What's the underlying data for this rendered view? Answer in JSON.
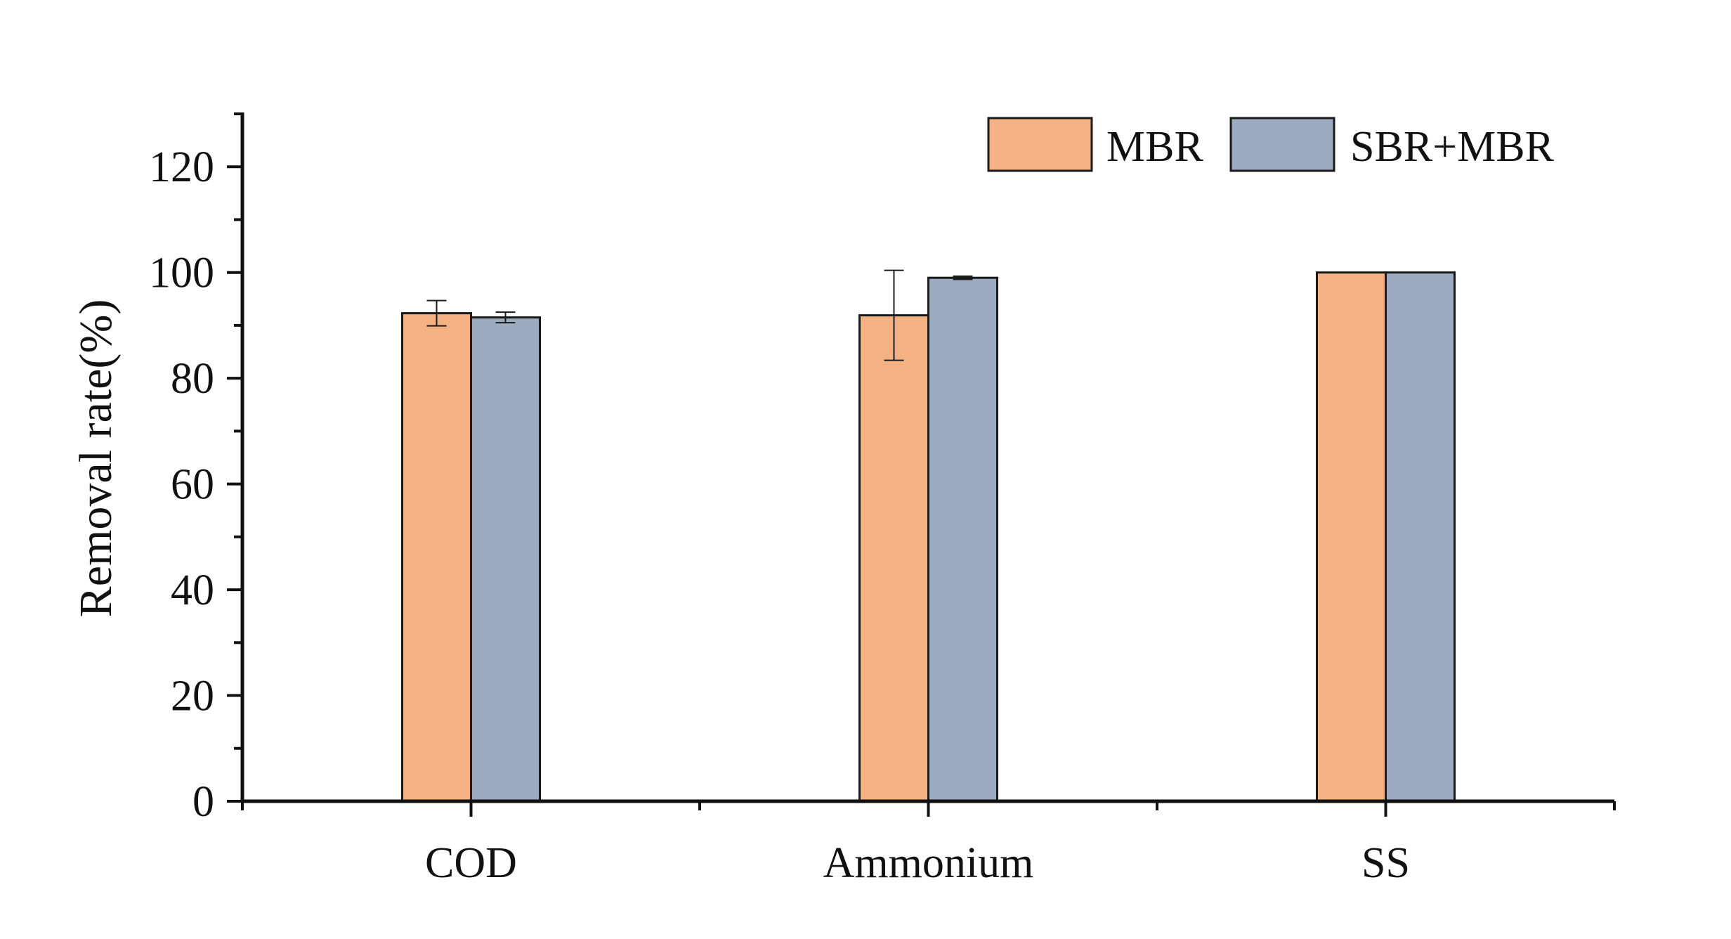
{
  "chart_data": {
    "type": "bar",
    "title": "",
    "xlabel": "",
    "ylabel": "Removal rate(%)",
    "categories": [
      "COD",
      "Ammonium",
      "SS"
    ],
    "series": [
      {
        "name": "MBR",
        "color": "#f4b183",
        "values": [
          92.3,
          91.9,
          100
        ],
        "error": [
          2.4,
          8.5,
          0
        ]
      },
      {
        "name": "SBR+MBR",
        "color": "#9dabc0",
        "values": [
          91.5,
          99.0,
          100
        ],
        "error": [
          1.0,
          0.3,
          0
        ]
      }
    ],
    "ylim": [
      0,
      130
    ],
    "yticks": [
      0,
      20,
      40,
      60,
      80,
      100,
      120
    ],
    "grid": false,
    "legend": "top-right"
  }
}
